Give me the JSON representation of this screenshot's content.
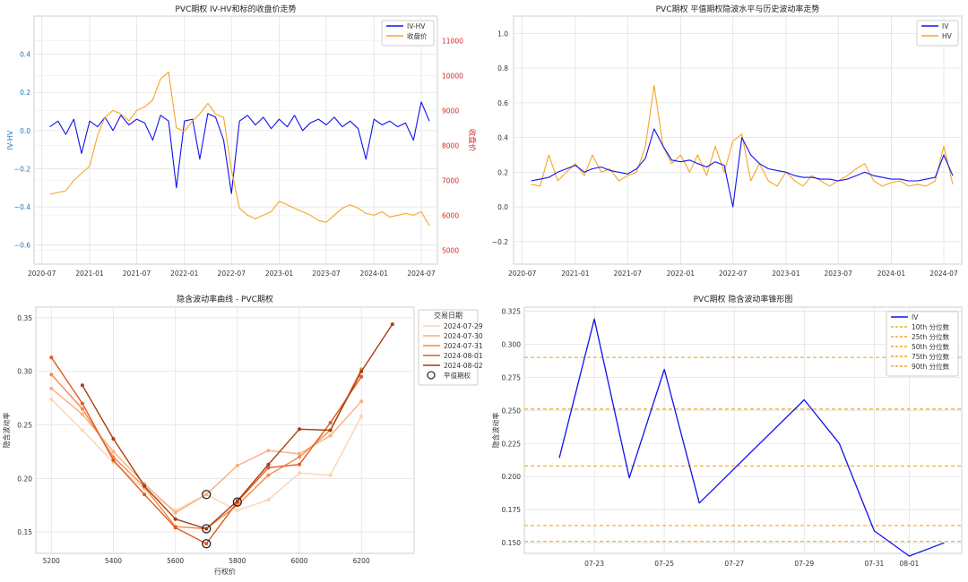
{
  "chart_data": [
    {
      "type": "line",
      "title": "PVC期权 IV-HV和标的收盘价走势",
      "xlabel": "",
      "ylabel": "IV-HV",
      "ylabel_right": "收盘价",
      "xticks": [
        "2020-07",
        "2021-01",
        "2021-07",
        "2022-01",
        "2022-07",
        "2023-01",
        "2023-07",
        "2024-01",
        "2024-07"
      ],
      "yticks_left": [
        "−0.6",
        "−0.4",
        "−0.2",
        "0.0",
        "0.2",
        "0.4"
      ],
      "yticks_right": [
        "5000",
        "6000",
        "7000",
        "8000",
        "9000",
        "10000",
        "11000"
      ],
      "ylim_left": [
        -0.7,
        0.6
      ],
      "ylim_right": [
        4600,
        11700
      ],
      "grid": true,
      "legend_position": "top-right",
      "colors": {
        "left_axis": "#1f77b4",
        "right_axis": "#d62728"
      },
      "series": [
        {
          "name": "IV-HV",
          "color": "#1111ee",
          "axis": "left",
          "x": [
            "2020-08-01",
            "2020-09-01",
            "2020-10-01",
            "2020-11-01",
            "2020-12-01",
            "2021-01-01",
            "2021-02-01",
            "2021-03-01",
            "2021-04-01",
            "2021-05-01",
            "2021-06-01",
            "2021-07-01",
            "2021-08-01",
            "2021-09-01",
            "2021-10-01",
            "2021-11-01",
            "2021-12-01",
            "2022-01-01",
            "2022-02-01",
            "2022-03-01",
            "2022-04-01",
            "2022-05-01",
            "2022-06-01",
            "2022-07-01",
            "2022-08-01",
            "2022-09-01",
            "2022-10-01",
            "2022-11-01",
            "2022-12-01",
            "2023-01-01",
            "2023-02-01",
            "2023-03-01",
            "2023-04-01",
            "2023-05-01",
            "2023-06-01",
            "2023-07-01",
            "2023-08-01",
            "2023-09-01",
            "2023-10-01",
            "2023-11-01",
            "2023-12-01",
            "2024-01-01",
            "2024-02-01",
            "2024-03-01",
            "2024-04-01",
            "2024-05-01",
            "2024-06-01",
            "2024-07-01",
            "2024-08-01"
          ],
          "values": [
            0.02,
            0.05,
            -0.02,
            0.06,
            -0.12,
            0.05,
            0.02,
            0.07,
            0.0,
            0.08,
            0.03,
            0.06,
            0.04,
            -0.05,
            0.08,
            0.05,
            -0.3,
            0.05,
            0.06,
            -0.15,
            0.09,
            0.07,
            -0.05,
            -0.33,
            0.05,
            0.08,
            0.03,
            0.07,
            0.01,
            0.06,
            0.02,
            0.08,
            0.0,
            0.04,
            0.06,
            0.03,
            0.07,
            0.02,
            0.05,
            0.01,
            -0.15,
            0.06,
            0.03,
            0.05,
            0.02,
            0.04,
            -0.05,
            0.15,
            0.05
          ]
        },
        {
          "name": "收盘价",
          "color": "#f5a623",
          "axis": "right",
          "x": [
            "2020-08-01",
            "2020-09-01",
            "2020-10-01",
            "2020-11-01",
            "2020-12-01",
            "2021-01-01",
            "2021-02-01",
            "2021-03-01",
            "2021-04-01",
            "2021-05-01",
            "2021-06-01",
            "2021-07-01",
            "2021-08-01",
            "2021-09-01",
            "2021-10-01",
            "2021-11-01",
            "2021-12-01",
            "2022-01-01",
            "2022-02-01",
            "2022-03-01",
            "2022-04-01",
            "2022-05-01",
            "2022-06-01",
            "2022-07-01",
            "2022-08-01",
            "2022-09-01",
            "2022-10-01",
            "2022-11-01",
            "2022-12-01",
            "2023-01-01",
            "2023-02-01",
            "2023-03-01",
            "2023-04-01",
            "2023-05-01",
            "2023-06-01",
            "2023-07-01",
            "2023-08-01",
            "2023-09-01",
            "2023-10-01",
            "2023-11-01",
            "2023-12-01",
            "2024-01-01",
            "2024-02-01",
            "2024-03-01",
            "2024-04-01",
            "2024-05-01",
            "2024-06-01",
            "2024-07-01",
            "2024-08-01"
          ],
          "values": [
            6600,
            6650,
            6700,
            7000,
            7200,
            7400,
            8300,
            8800,
            9000,
            8900,
            8700,
            9000,
            9100,
            9300,
            9900,
            10100,
            8500,
            8400,
            8700,
            8900,
            9200,
            8900,
            8800,
            7300,
            6200,
            6000,
            5900,
            6000,
            6100,
            6400,
            6300,
            6200,
            6100,
            6000,
            5850,
            5800,
            6000,
            6200,
            6300,
            6200,
            6050,
            6000,
            6100,
            5950,
            6000,
            6050,
            6000,
            6100,
            5700
          ]
        }
      ]
    },
    {
      "type": "line",
      "title": "PVC期权 平值期权隐波水平与历史波动率走势",
      "xticks": [
        "2020-07",
        "2021-01",
        "2021-07",
        "2022-01",
        "2022-07",
        "2023-01",
        "2023-07",
        "2024-01",
        "2024-07"
      ],
      "yticks": [
        "−0.2",
        "0.0",
        "0.2",
        "0.4",
        "0.6",
        "0.8",
        "1.0"
      ],
      "ylim": [
        -0.33,
        1.1
      ],
      "grid": true,
      "legend_position": "top-right",
      "series": [
        {
          "name": "IV",
          "color": "#1111ee",
          "x": [
            "2020-08-01",
            "2020-09-01",
            "2020-10-01",
            "2020-11-01",
            "2020-12-01",
            "2021-01-01",
            "2021-02-01",
            "2021-03-01",
            "2021-04-01",
            "2021-05-01",
            "2021-06-01",
            "2021-07-01",
            "2021-08-01",
            "2021-09-01",
            "2021-10-01",
            "2021-11-01",
            "2021-12-01",
            "2022-01-01",
            "2022-02-01",
            "2022-03-01",
            "2022-04-01",
            "2022-05-01",
            "2022-06-01",
            "2022-07-01",
            "2022-08-01",
            "2022-09-01",
            "2022-10-01",
            "2022-11-01",
            "2022-12-01",
            "2023-01-01",
            "2023-02-01",
            "2023-03-01",
            "2023-04-01",
            "2023-05-01",
            "2023-06-01",
            "2023-07-01",
            "2023-08-01",
            "2023-09-01",
            "2023-10-01",
            "2023-11-01",
            "2023-12-01",
            "2024-01-01",
            "2024-02-01",
            "2024-03-01",
            "2024-04-01",
            "2024-05-01",
            "2024-06-01",
            "2024-07-01",
            "2024-08-01"
          ],
          "values": [
            0.15,
            0.16,
            0.17,
            0.2,
            0.22,
            0.24,
            0.2,
            0.22,
            0.23,
            0.21,
            0.2,
            0.19,
            0.22,
            0.28,
            0.45,
            0.35,
            0.27,
            0.26,
            0.27,
            0.25,
            0.23,
            0.26,
            0.24,
            0.0,
            0.4,
            0.3,
            0.25,
            0.22,
            0.21,
            0.2,
            0.18,
            0.17,
            0.17,
            0.16,
            0.16,
            0.15,
            0.16,
            0.18,
            0.2,
            0.18,
            0.17,
            0.16,
            0.16,
            0.15,
            0.15,
            0.16,
            0.17,
            0.3,
            0.18
          ]
        },
        {
          "name": "HV",
          "color": "#f5a623",
          "x": [
            "2020-08-01",
            "2020-09-01",
            "2020-10-01",
            "2020-11-01",
            "2020-12-01",
            "2021-01-01",
            "2021-02-01",
            "2021-03-01",
            "2021-04-01",
            "2021-05-01",
            "2021-06-01",
            "2021-07-01",
            "2021-08-01",
            "2021-09-01",
            "2021-10-01",
            "2021-11-01",
            "2021-12-01",
            "2022-01-01",
            "2022-02-01",
            "2022-03-01",
            "2022-04-01",
            "2022-05-01",
            "2022-06-01",
            "2022-07-01",
            "2022-08-01",
            "2022-09-01",
            "2022-10-01",
            "2022-11-01",
            "2022-12-01",
            "2023-01-01",
            "2023-02-01",
            "2023-03-01",
            "2023-04-01",
            "2023-05-01",
            "2023-06-01",
            "2023-07-01",
            "2023-08-01",
            "2023-09-01",
            "2023-10-01",
            "2023-11-01",
            "2023-12-01",
            "2024-01-01",
            "2024-02-01",
            "2024-03-01",
            "2024-04-01",
            "2024-05-01",
            "2024-06-01",
            "2024-07-01",
            "2024-08-01"
          ],
          "values": [
            0.13,
            0.12,
            0.3,
            0.15,
            0.2,
            0.25,
            0.18,
            0.3,
            0.2,
            0.22,
            0.15,
            0.18,
            0.2,
            0.35,
            0.7,
            0.35,
            0.25,
            0.3,
            0.2,
            0.3,
            0.18,
            0.35,
            0.2,
            0.38,
            0.42,
            0.15,
            0.25,
            0.15,
            0.12,
            0.2,
            0.15,
            0.12,
            0.18,
            0.15,
            0.12,
            0.15,
            0.18,
            0.22,
            0.25,
            0.15,
            0.12,
            0.14,
            0.15,
            0.12,
            0.13,
            0.12,
            0.15,
            0.35,
            0.13
          ]
        }
      ]
    },
    {
      "type": "line",
      "title": "隐含波动率曲线 - PVC期权",
      "xlabel": "行权价",
      "ylabel": "隐含波动率",
      "xlim": [
        5150,
        6370
      ],
      "ylim": [
        0.13,
        0.36
      ],
      "xticks": [
        "5200",
        "5400",
        "5600",
        "5800",
        "6000",
        "6200"
      ],
      "yticks": [
        "0.15",
        "0.20",
        "0.25",
        "0.30",
        "0.35"
      ],
      "grid": true,
      "legend_title": "交易日期",
      "legend_position": "right",
      "atm_label": "平值期权",
      "series": [
        {
          "name": "2024-07-29",
          "color": "#fcd4b0",
          "x": [
            5200,
            5300,
            5400,
            5500,
            5600,
            5700,
            5800,
            5900,
            6000,
            6100,
            6200
          ],
          "values": [
            0.274,
            0.245,
            0.215,
            0.19,
            0.17,
            0.185,
            0.17,
            0.18,
            0.205,
            0.203,
            0.258
          ]
        },
        {
          "name": "2024-07-30",
          "color": "#fbae7c",
          "x": [
            5200,
            5300,
            5400,
            5500,
            5600,
            5700,
            5800,
            5900,
            6000,
            6100,
            6200
          ],
          "values": [
            0.284,
            0.26,
            0.225,
            0.195,
            0.168,
            0.185,
            0.212,
            0.226,
            0.223,
            0.24,
            0.272
          ]
        },
        {
          "name": "2024-07-31",
          "color": "#f5894c",
          "x": [
            5200,
            5300,
            5400,
            5500,
            5600,
            5700,
            5800,
            5900,
            6000,
            6100,
            6200
          ],
          "values": [
            0.297,
            0.265,
            0.22,
            0.192,
            0.155,
            0.153,
            0.175,
            0.203,
            0.22,
            0.245,
            0.302
          ]
        },
        {
          "name": "2024-08-01",
          "color": "#de5b1e",
          "x": [
            5200,
            5300,
            5400,
            5500,
            5600,
            5700,
            5800,
            5900,
            6000,
            6100,
            6200
          ],
          "values": [
            0.313,
            0.27,
            0.217,
            0.185,
            0.154,
            0.139,
            0.178,
            0.21,
            0.213,
            0.252,
            0.295
          ]
        },
        {
          "name": "2024-08-02",
          "color": "#a83e0f",
          "x": [
            5300,
            5400,
            5500,
            5600,
            5700,
            5800,
            5900,
            6000,
            6100,
            6200,
            6300
          ],
          "values": [
            0.287,
            0.237,
            0.193,
            0.162,
            0.153,
            0.179,
            0.213,
            0.246,
            0.245,
            0.3,
            0.344
          ]
        }
      ],
      "atm_points": [
        {
          "x": 5700,
          "y": 0.185
        },
        {
          "x": 5700,
          "y": 0.153
        },
        {
          "x": 5700,
          "y": 0.139
        },
        {
          "x": 5800,
          "y": 0.178
        }
      ]
    },
    {
      "type": "line",
      "title": "PVC期权 隐含波动率锥形图",
      "ylabel": "隐含波动率",
      "x": [
        "2024-07-22",
        "2024-07-23",
        "2024-07-24",
        "2024-07-25",
        "2024-07-26",
        "2024-07-29",
        "2024-07-30",
        "2024-07-31",
        "2024-08-01",
        "2024-08-02"
      ],
      "xticks": [
        "07-23",
        "07-25",
        "07-27",
        "07-29",
        "07-31",
        "08-01"
      ],
      "yticks": [
        "0.150",
        "0.175",
        "0.200",
        "0.225",
        "0.250",
        "0.275",
        "0.300",
        "0.325"
      ],
      "ylim": [
        0.142,
        0.328
      ],
      "grid": true,
      "legend_position": "top-right",
      "series": [
        {
          "name": "IV",
          "color": "#1111ee",
          "values": [
            0.214,
            0.319,
            0.199,
            0.281,
            0.18,
            0.258,
            0.225,
            0.159,
            0.14,
            0.15
          ]
        }
      ],
      "percentiles": [
        {
          "name": "10th 分位数",
          "value": 0.151,
          "color": "#f5a623"
        },
        {
          "name": "25th 分位数",
          "value": 0.163,
          "color": "#f5a623"
        },
        {
          "name": "50th 分位数",
          "value": 0.208,
          "color": "#f5a623"
        },
        {
          "name": "75th 分位数",
          "value": 0.251,
          "color": "#f5a623"
        },
        {
          "name": "90th 分位数",
          "value": 0.29,
          "color": "#f5a623"
        }
      ]
    }
  ]
}
